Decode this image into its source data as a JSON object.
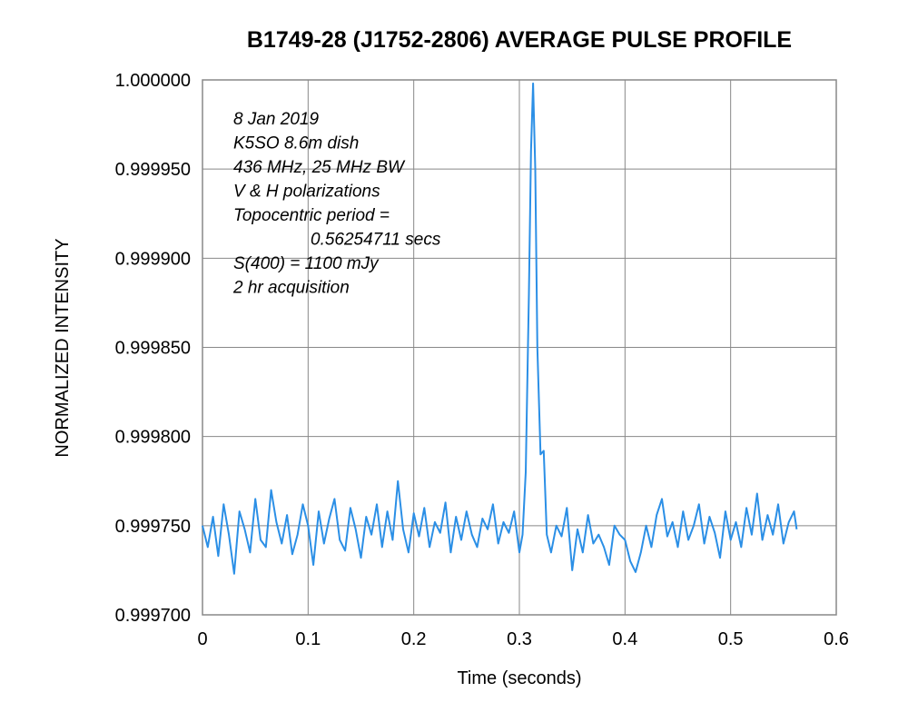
{
  "chart_data": {
    "type": "line",
    "title": "B1749-28 (J1752-2806) AVERAGE PULSE PROFILE",
    "xlabel": "Time (seconds)",
    "ylabel": "NORMALIZED INTENSITY",
    "xlim": [
      0,
      0.6
    ],
    "ylim": [
      0.9997,
      1.0
    ],
    "x_ticks": [
      "0",
      "0.1",
      "0.2",
      "0.3",
      "0.4",
      "0.5",
      "0.6"
    ],
    "y_ticks": [
      "0.999700",
      "0.999750",
      "0.999800",
      "0.999850",
      "0.999900",
      "0.999950",
      "1.000000"
    ],
    "grid": true,
    "legend": "none",
    "series_color": "#2b8fe6",
    "annotations": [
      "8 Jan 2019",
      "K5SO 8.6m dish",
      "436 MHz, 25 MHz BW",
      "V & H polarizations",
      "Topocentric period =",
      "0.56254711 secs",
      "S(400) = 1100 mJy",
      "2 hr acquisition"
    ],
    "series": [
      {
        "x": [
          0.0,
          0.005,
          0.01,
          0.015,
          0.02,
          0.025,
          0.03,
          0.035,
          0.04,
          0.045,
          0.05,
          0.055,
          0.06,
          0.065,
          0.07,
          0.075,
          0.08,
          0.085,
          0.09,
          0.095,
          0.1,
          0.105,
          0.11,
          0.115,
          0.12,
          0.125,
          0.13,
          0.135,
          0.14,
          0.145,
          0.15,
          0.155,
          0.16,
          0.165,
          0.17,
          0.175,
          0.18,
          0.185,
          0.19,
          0.195,
          0.2,
          0.205,
          0.21,
          0.215,
          0.22,
          0.225,
          0.23,
          0.235,
          0.24,
          0.245,
          0.25,
          0.255,
          0.26,
          0.265,
          0.27,
          0.275,
          0.28,
          0.285,
          0.29,
          0.295,
          0.3,
          0.303,
          0.306,
          0.309,
          0.311,
          0.313,
          0.315,
          0.317,
          0.32,
          0.323,
          0.326,
          0.33,
          0.335,
          0.34,
          0.345,
          0.35,
          0.355,
          0.36,
          0.365,
          0.37,
          0.375,
          0.38,
          0.385,
          0.39,
          0.395,
          0.4,
          0.405,
          0.41,
          0.415,
          0.42,
          0.425,
          0.43,
          0.435,
          0.44,
          0.445,
          0.45,
          0.455,
          0.46,
          0.465,
          0.47,
          0.475,
          0.48,
          0.485,
          0.49,
          0.495,
          0.5,
          0.505,
          0.51,
          0.515,
          0.52,
          0.525,
          0.53,
          0.535,
          0.54,
          0.545,
          0.55,
          0.555,
          0.56,
          0.5625
        ],
        "y": [
          0.99975,
          0.999738,
          0.999755,
          0.999733,
          0.999762,
          0.999745,
          0.999723,
          0.999758,
          0.999748,
          0.999735,
          0.999765,
          0.999742,
          0.999738,
          0.99977,
          0.999752,
          0.99974,
          0.999756,
          0.999734,
          0.999745,
          0.999762,
          0.99975,
          0.999728,
          0.999758,
          0.99974,
          0.999754,
          0.999765,
          0.999742,
          0.999736,
          0.99976,
          0.999748,
          0.999732,
          0.999755,
          0.999745,
          0.999762,
          0.999738,
          0.999758,
          0.999742,
          0.999775,
          0.999748,
          0.999735,
          0.999757,
          0.999744,
          0.99976,
          0.999738,
          0.999752,
          0.999746,
          0.999763,
          0.999735,
          0.999755,
          0.999742,
          0.999758,
          0.999745,
          0.999738,
          0.999754,
          0.999748,
          0.999762,
          0.99974,
          0.999752,
          0.999746,
          0.999758,
          0.999735,
          0.999745,
          0.99978,
          0.99988,
          0.99996,
          0.999998,
          0.99995,
          0.99985,
          0.99979,
          0.999792,
          0.999745,
          0.999735,
          0.99975,
          0.999744,
          0.99976,
          0.999725,
          0.999748,
          0.999735,
          0.999756,
          0.99974,
          0.999745,
          0.999738,
          0.999728,
          0.99975,
          0.999745,
          0.999742,
          0.99973,
          0.999724,
          0.999735,
          0.99975,
          0.999738,
          0.999756,
          0.999765,
          0.999744,
          0.999752,
          0.999738,
          0.999758,
          0.999742,
          0.99975,
          0.999762,
          0.99974,
          0.999755,
          0.999746,
          0.999732,
          0.999758,
          0.999742,
          0.999752,
          0.999738,
          0.99976,
          0.999745,
          0.999768,
          0.999742,
          0.999756,
          0.999745,
          0.999762,
          0.99974,
          0.999752,
          0.999758,
          0.999748
        ]
      }
    ]
  }
}
